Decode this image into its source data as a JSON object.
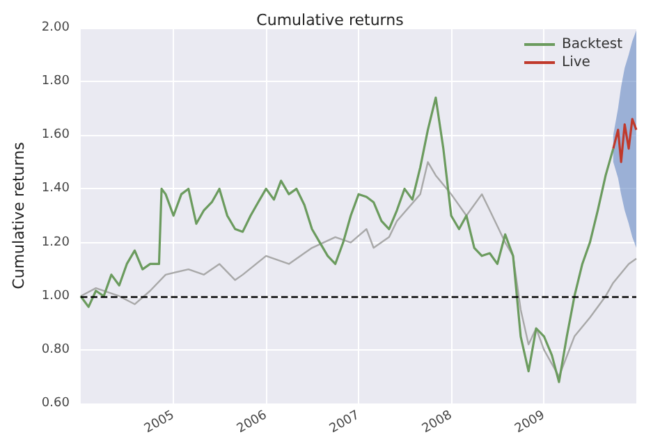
{
  "chart_data": {
    "type": "line",
    "title": "Cumulative returns",
    "ylabel": "Cumulative returns",
    "xlim": [
      "2004-01-01",
      "2009-12-31"
    ],
    "xticks": [
      {
        "value": "2005-01-01",
        "label": "2005"
      },
      {
        "value": "2006-01-01",
        "label": "2006"
      },
      {
        "value": "2007-01-01",
        "label": "2007"
      },
      {
        "value": "2008-01-01",
        "label": "2008"
      },
      {
        "value": "2009-01-01",
        "label": "2009"
      }
    ],
    "ylim": [
      0.6,
      2.0
    ],
    "yticks": [
      {
        "value": 0.6,
        "label": "0.60"
      },
      {
        "value": 0.8,
        "label": "0.80"
      },
      {
        "value": 1.0,
        "label": "1.00"
      },
      {
        "value": 1.2,
        "label": "1.20"
      },
      {
        "value": 1.4,
        "label": "1.40"
      },
      {
        "value": 1.6,
        "label": "1.60"
      },
      {
        "value": 1.8,
        "label": "1.80"
      },
      {
        "value": 2.0,
        "label": "2.00"
      }
    ],
    "grid": true,
    "legend": "top right",
    "line_style": "solid",
    "marker": "none",
    "ref_lines": [
      {
        "axis": "y",
        "value": 1.0,
        "color": "#000000",
        "line_style": "dashed"
      }
    ],
    "series": [
      {
        "color": "#a8a8a8",
        "x": [
          "2004-01",
          "2004-03",
          "2004-06",
          "2004-08",
          "2004-10",
          "2004-12",
          "2005-03",
          "2005-05",
          "2005-07",
          "2005-09",
          "2005-10",
          "2006-01",
          "2006-04",
          "2006-07",
          "2006-10",
          "2006-12",
          "2007-02",
          "2007-03",
          "2007-05",
          "2007-06",
          "2007-09",
          "2007-10",
          "2007-11",
          "2008-01",
          "2008-03",
          "2008-05",
          "2008-06",
          "2008-08",
          "2008-09",
          "2008-10",
          "2008-11",
          "2008-12",
          "2009-01",
          "2009-03",
          "2009-05",
          "2009-07",
          "2009-09",
          "2009-10",
          "2009-12",
          "2009-12-31"
        ],
        "values": [
          1.0,
          1.03,
          1.0,
          0.97,
          1.02,
          1.08,
          1.1,
          1.08,
          1.12,
          1.06,
          1.08,
          1.15,
          1.12,
          1.18,
          1.22,
          1.2,
          1.25,
          1.18,
          1.22,
          1.28,
          1.38,
          1.5,
          1.45,
          1.38,
          1.3,
          1.38,
          1.32,
          1.2,
          1.15,
          0.95,
          0.82,
          0.88,
          0.8,
          0.7,
          0.85,
          0.92,
          1.0,
          1.05,
          1.12,
          1.14
        ]
      },
      {
        "name": "Backtest",
        "color": "#6b9b5e",
        "x": [
          "2004-01",
          "2004-02",
          "2004-03",
          "2004-04",
          "2004-05",
          "2004-06",
          "2004-07",
          "2004-08",
          "2004-09",
          "2004-10",
          "2004-11-05",
          "2004-11-15",
          "2004-12",
          "2005-01",
          "2005-02",
          "2005-03",
          "2005-04",
          "2005-05",
          "2005-06",
          "2005-07",
          "2005-08",
          "2005-09",
          "2005-10",
          "2005-11",
          "2005-12",
          "2006-01",
          "2006-02",
          "2006-03",
          "2006-04",
          "2006-05",
          "2006-06",
          "2006-07",
          "2006-08",
          "2006-09",
          "2006-10",
          "2006-11",
          "2006-12",
          "2007-01",
          "2007-02",
          "2007-03",
          "2007-04",
          "2007-05",
          "2007-06",
          "2007-07",
          "2007-08",
          "2007-09",
          "2007-10",
          "2007-11",
          "2007-12",
          "2008-01",
          "2008-02",
          "2008-03",
          "2008-04",
          "2008-05",
          "2008-06",
          "2008-07",
          "2008-08",
          "2008-09",
          "2008-10",
          "2008-11",
          "2008-12",
          "2009-01",
          "2009-02",
          "2009-03",
          "2009-04",
          "2009-05",
          "2009-06",
          "2009-07",
          "2009-08",
          "2009-09",
          "2009-10"
        ],
        "values": [
          1.0,
          0.96,
          1.02,
          1.0,
          1.08,
          1.04,
          1.12,
          1.17,
          1.1,
          1.12,
          1.12,
          1.4,
          1.38,
          1.3,
          1.38,
          1.4,
          1.27,
          1.32,
          1.35,
          1.4,
          1.3,
          1.25,
          1.24,
          1.3,
          1.35,
          1.4,
          1.36,
          1.43,
          1.38,
          1.4,
          1.34,
          1.25,
          1.2,
          1.15,
          1.12,
          1.2,
          1.3,
          1.38,
          1.37,
          1.35,
          1.28,
          1.25,
          1.32,
          1.4,
          1.36,
          1.48,
          1.62,
          1.74,
          1.55,
          1.3,
          1.25,
          1.3,
          1.18,
          1.15,
          1.16,
          1.12,
          1.23,
          1.15,
          0.85,
          0.72,
          0.88,
          0.85,
          0.78,
          0.68,
          0.85,
          1.0,
          1.12,
          1.2,
          1.32,
          1.45,
          1.55
        ]
      },
      {
        "name": "Live",
        "color": "#c0392b",
        "x": [
          "2009-10",
          "2009-10-20",
          "2009-11",
          "2009-11-15",
          "2009-12",
          "2009-12-15",
          "2009-12-31"
        ],
        "values": [
          1.55,
          1.62,
          1.5,
          1.64,
          1.55,
          1.66,
          1.62
        ],
        "lower": [
          1.5,
          1.44,
          1.38,
          1.32,
          1.27,
          1.22,
          1.18
        ],
        "upper": [
          1.6,
          1.7,
          1.78,
          1.85,
          1.9,
          1.95,
          1.99
        ]
      }
    ]
  }
}
